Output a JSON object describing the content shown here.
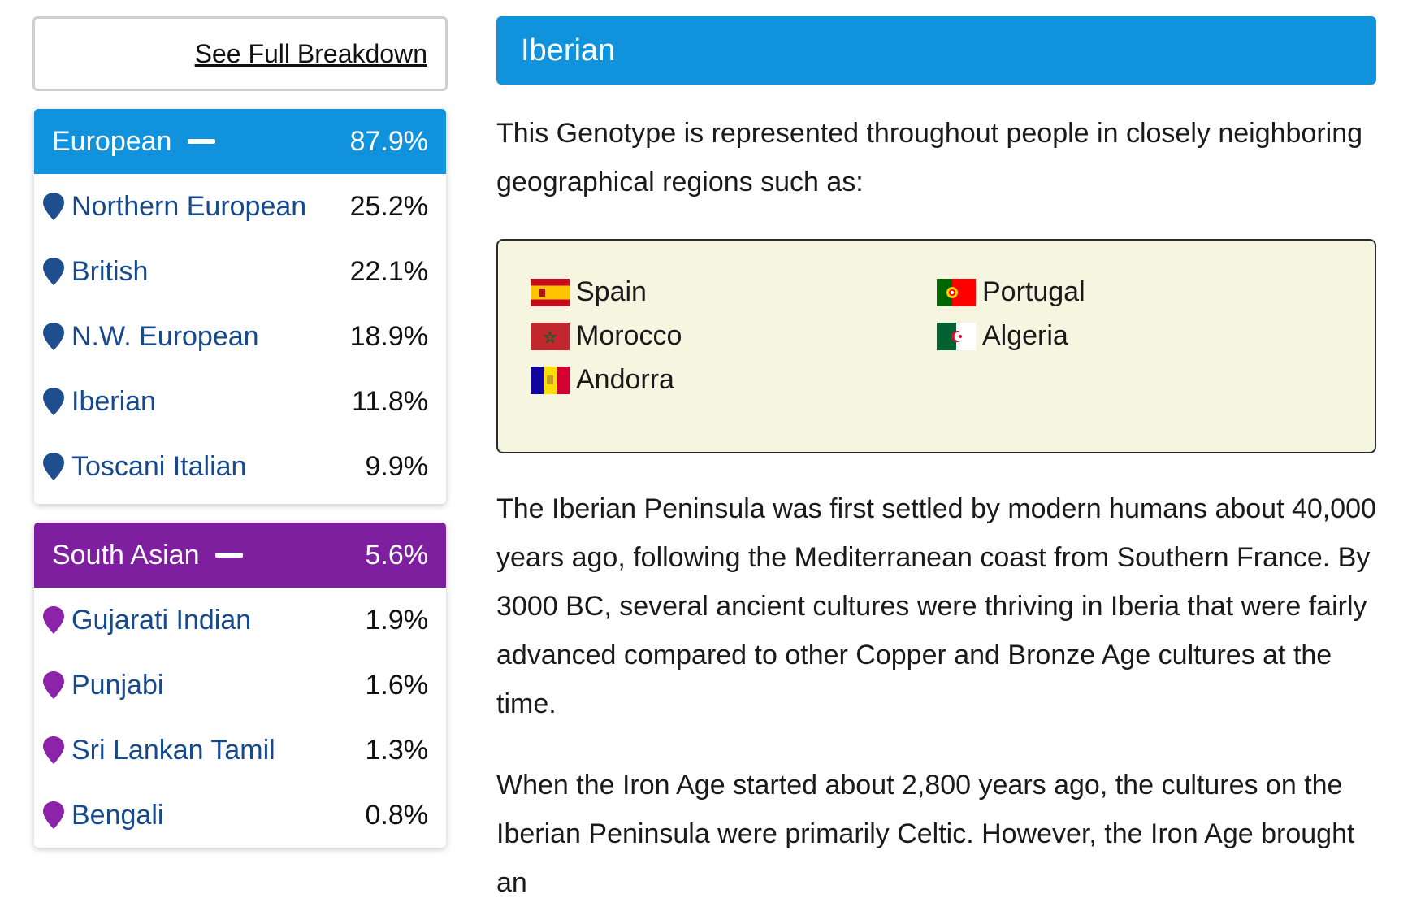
{
  "see_full_label": "See Full Breakdown",
  "groups": [
    {
      "name": "European",
      "pct": "87.9%",
      "color": "#1192dc",
      "pin_color": "#1d4f8f",
      "items": [
        {
          "label": "Northern European",
          "pct": "25.2%"
        },
        {
          "label": "British",
          "pct": "22.1%"
        },
        {
          "label": "N.W. European",
          "pct": "18.9%"
        },
        {
          "label": "Iberian",
          "pct": "11.8%"
        },
        {
          "label": "Toscani Italian",
          "pct": "9.9%"
        }
      ]
    },
    {
      "name": "South Asian",
      "pct": "5.6%",
      "color": "#7e1fa0",
      "pin_color": "#8b24a8",
      "items": [
        {
          "label": "Gujarati Indian",
          "pct": "1.9%"
        },
        {
          "label": "Punjabi",
          "pct": "1.6%"
        },
        {
          "label": "Sri Lankan Tamil",
          "pct": "1.3%"
        },
        {
          "label": "Bengali",
          "pct": "0.8%"
        }
      ]
    }
  ],
  "detail": {
    "title": "Iberian",
    "intro": "This Genotype is represented throughout people in closely neighboring geographical regions such as:",
    "regions": [
      {
        "name": "Spain",
        "flag": "spain-flag-icon"
      },
      {
        "name": "Portugal",
        "flag": "portugal-flag-icon"
      },
      {
        "name": "Morocco",
        "flag": "morocco-flag-icon"
      },
      {
        "name": "Algeria",
        "flag": "algeria-flag-icon"
      },
      {
        "name": "Andorra",
        "flag": "andorra-flag-icon"
      }
    ],
    "paragraph1": "The Iberian Peninsula was first settled by modern humans about 40,000 years ago, following the Mediterranean coast from Southern France. By 3000 BC, several ancient cultures were thriving in Iberia that were fairly advanced compared to other Copper and Bronze Age cultures at the time.",
    "paragraph2": "When the Iron Age started about 2,800 years ago, the cultures on the Iberian Peninsula were primarily Celtic. However, the Iron Age brought an"
  }
}
